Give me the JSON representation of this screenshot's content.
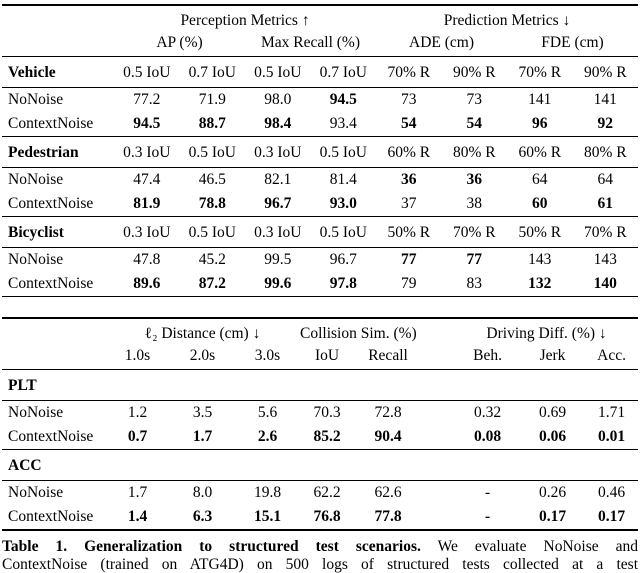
{
  "colors": {
    "background": "#ffffff",
    "text": "#000000",
    "rule": "#000000"
  },
  "table1": {
    "group_headers": [
      {
        "label": "Perception Metrics ↑",
        "span": 4
      },
      {
        "label": "Prediction Metrics ↓",
        "span": 4
      }
    ],
    "metric_headers": [
      {
        "label": "AP (%)",
        "span": 2
      },
      {
        "label": "Max Recall (%)",
        "span": 2
      },
      {
        "label": "ADE (cm)",
        "span": 2
      },
      {
        "label": "FDE (cm)",
        "span": 2
      }
    ],
    "sections": [
      {
        "name": "Vehicle",
        "col_headers": [
          "0.5 IoU",
          "0.7 IoU",
          "0.5 IoU",
          "0.7 IoU",
          "70% R",
          "90% R",
          "70% R",
          "90% R"
        ],
        "rows": [
          {
            "label": "NoNoise",
            "values": [
              "77.2",
              "71.9",
              "98.0",
              "94.5",
              "73",
              "73",
              "141",
              "141"
            ],
            "bold": [
              0,
              0,
              0,
              1,
              0,
              0,
              0,
              0
            ]
          },
          {
            "label": "ContextNoise",
            "values": [
              "94.5",
              "88.7",
              "98.4",
              "93.4",
              "54",
              "54",
              "96",
              "92"
            ],
            "bold": [
              1,
              1,
              1,
              0,
              1,
              1,
              1,
              1
            ]
          }
        ]
      },
      {
        "name": "Pedestrian",
        "col_headers": [
          "0.3 IoU",
          "0.5 IoU",
          "0.3 IoU",
          "0.5 IoU",
          "60% R",
          "80% R",
          "60% R",
          "80% R"
        ],
        "rows": [
          {
            "label": "NoNoise",
            "values": [
              "47.4",
              "46.5",
              "82.1",
              "81.4",
              "36",
              "36",
              "64",
              "64"
            ],
            "bold": [
              0,
              0,
              0,
              0,
              1,
              1,
              0,
              0
            ]
          },
          {
            "label": "ContextNoise",
            "values": [
              "81.9",
              "78.8",
              "96.7",
              "93.0",
              "37",
              "38",
              "60",
              "61"
            ],
            "bold": [
              1,
              1,
              1,
              1,
              0,
              0,
              1,
              1
            ]
          }
        ]
      },
      {
        "name": "Bicyclist",
        "col_headers": [
          "0.3 IoU",
          "0.5 IoU",
          "0.3 IoU",
          "0.5 IoU",
          "50% R",
          "70% R",
          "50% R",
          "70% R"
        ],
        "rows": [
          {
            "label": "NoNoise",
            "values": [
              "47.8",
              "45.2",
              "99.5",
              "96.7",
              "77",
              "77",
              "143",
              "143"
            ],
            "bold": [
              0,
              0,
              0,
              0,
              1,
              1,
              0,
              0
            ]
          },
          {
            "label": "ContextNoise",
            "values": [
              "89.6",
              "87.2",
              "99.6",
              "97.8",
              "79",
              "83",
              "132",
              "140"
            ],
            "bold": [
              1,
              1,
              1,
              1,
              0,
              0,
              1,
              1
            ]
          }
        ]
      }
    ]
  },
  "table2": {
    "group_headers": [
      {
        "label": "ℓ₂ Distance (cm) ↓",
        "span": 3
      },
      {
        "label": "Collision Sim. (%) ↑",
        "span": 2
      },
      {
        "label": "Driving Diff. (%) ↓",
        "span": 3
      }
    ],
    "sub_headers": [
      "1.0s",
      "2.0s",
      "3.0s",
      "IoU",
      "Recall",
      "Beh.",
      "Jerk",
      "Acc."
    ],
    "sections": [
      {
        "name": "PLT",
        "rows": [
          {
            "label": "NoNoise",
            "values": [
              "1.2",
              "3.5",
              "5.6",
              "70.3",
              "72.8",
              "0.32",
              "0.69",
              "1.71"
            ],
            "bold": [
              0,
              0,
              0,
              0,
              0,
              0,
              0,
              0
            ]
          },
          {
            "label": "ContextNoise",
            "values": [
              "0.7",
              "1.7",
              "2.6",
              "85.2",
              "90.4",
              "0.08",
              "0.06",
              "0.01"
            ],
            "bold": [
              1,
              1,
              1,
              1,
              1,
              1,
              1,
              1
            ]
          }
        ]
      },
      {
        "name": "ACC",
        "rows": [
          {
            "label": "NoNoise",
            "values": [
              "1.7",
              "8.0",
              "19.8",
              "62.2",
              "62.6",
              "-",
              "0.26",
              "0.46"
            ],
            "bold": [
              0,
              0,
              0,
              0,
              0,
              0,
              0,
              0
            ]
          },
          {
            "label": "ContextNoise",
            "values": [
              "1.4",
              "6.3",
              "15.1",
              "76.8",
              "77.8",
              "-",
              "0.17",
              "0.17"
            ],
            "bold": [
              1,
              1,
              1,
              1,
              1,
              1,
              1,
              1
            ]
          }
        ]
      }
    ]
  },
  "caption": {
    "title": "Table 1. Generalization to structured test scenarios.",
    "line1_rest": "We evaluate NoNoise and",
    "line2": "ContextNoise (trained on ATG4D) on 500 logs of structured tests collected at a test"
  }
}
